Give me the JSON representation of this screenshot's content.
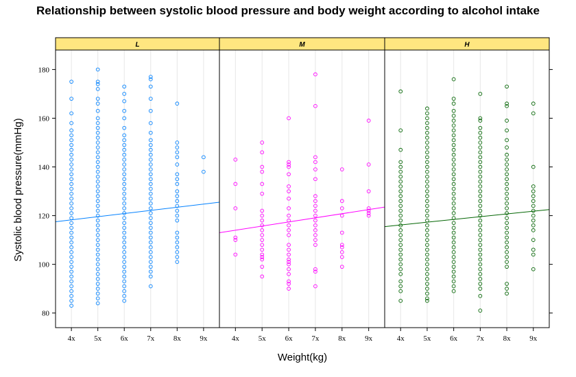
{
  "chart_data": {
    "type": "scatter",
    "title": "Relationship between systolic blood pressure and body weight according to alcohol intake",
    "xlabel": "Weight(kg)",
    "ylabel": "Systolic blood pressure(mmHg)",
    "categories": [
      "4x",
      "5x",
      "6x",
      "7x",
      "8x",
      "9x"
    ],
    "yticks": [
      80,
      100,
      120,
      140,
      160,
      180
    ],
    "ylim": [
      74,
      188
    ],
    "grid": "vertical",
    "panels": [
      {
        "name": "L",
        "color": "#0080ff",
        "trend": [
          117.5,
          125.5
        ],
        "points": {
          "4x": [
            83,
            85,
            87,
            89,
            91,
            93,
            95,
            97,
            99,
            101,
            103,
            105,
            107,
            109,
            111,
            113,
            115,
            117,
            119,
            121,
            123,
            125,
            127,
            129,
            131,
            133,
            135,
            137,
            139,
            141,
            143,
            145,
            147,
            149,
            151,
            153,
            155,
            158,
            162,
            168,
            175
          ],
          "5x": [
            84,
            86,
            88,
            90,
            92,
            94,
            96,
            98,
            100,
            102,
            104,
            106,
            108,
            110,
            112,
            114,
            116,
            118,
            120,
            122,
            124,
            126,
            128,
            130,
            132,
            134,
            136,
            138,
            140,
            142,
            144,
            146,
            148,
            150,
            152,
            154,
            156,
            158,
            160,
            163,
            166,
            168,
            172,
            174,
            175,
            180
          ],
          "6x": [
            85,
            87,
            89,
            91,
            93,
            95,
            97,
            99,
            101,
            103,
            105,
            107,
            109,
            111,
            113,
            115,
            117,
            119,
            121,
            123,
            125,
            127,
            129,
            131,
            133,
            135,
            137,
            139,
            141,
            143,
            145,
            147,
            149,
            151,
            153,
            156,
            160,
            163,
            167,
            170,
            173
          ],
          "7x": [
            91,
            95,
            97,
            99,
            101,
            103,
            105,
            107,
            109,
            111,
            113,
            115,
            117,
            119,
            121,
            123,
            125,
            127,
            129,
            131,
            133,
            135,
            137,
            139,
            141,
            143,
            145,
            147,
            149,
            151,
            154,
            158,
            163,
            168,
            173,
            176,
            177
          ],
          "8x": [
            101,
            103,
            105,
            107,
            109,
            111,
            113,
            118,
            120,
            122,
            124,
            126,
            128,
            130,
            133,
            135,
            137,
            141,
            144,
            146,
            148,
            150,
            166
          ],
          "9x": [
            138,
            144
          ]
        }
      },
      {
        "name": "M",
        "color": "#ff00ff",
        "trend": [
          113,
          123.5
        ],
        "points": {
          "4x": [
            104,
            110,
            111,
            123,
            133,
            143
          ],
          "5x": [
            95,
            99,
            102,
            103,
            104,
            106,
            108,
            110,
            112,
            114,
            116,
            118,
            120,
            122,
            129,
            133,
            138,
            140,
            146,
            150
          ],
          "6x": [
            90,
            92,
            93,
            96,
            98,
            100,
            101,
            102,
            104,
            106,
            108,
            112,
            114,
            116,
            118,
            120,
            123,
            127,
            130,
            132,
            137,
            140,
            141,
            142,
            160
          ],
          "7x": [
            91,
            97,
            98,
            108,
            110,
            112,
            114,
            116,
            118,
            120,
            122,
            124,
            126,
            128,
            135,
            139,
            142,
            144,
            165,
            178
          ],
          "8x": [
            99,
            103,
            105,
            107,
            108,
            113,
            120,
            123,
            126,
            139
          ],
          "9x": [
            120,
            121,
            122,
            123,
            130,
            141,
            159
          ]
        }
      },
      {
        "name": "H",
        "color": "#006400",
        "trend": [
          115.5,
          122.5
        ],
        "points": {
          "4x": [
            85,
            89,
            91,
            93,
            96,
            98,
            100,
            102,
            104,
            106,
            108,
            110,
            112,
            114,
            116,
            118,
            120,
            122,
            124,
            126,
            128,
            130,
            132,
            134,
            136,
            138,
            140,
            142,
            147,
            155,
            171
          ],
          "5x": [
            85,
            86,
            88,
            90,
            92,
            94,
            96,
            98,
            100,
            102,
            104,
            106,
            108,
            110,
            112,
            114,
            116,
            118,
            120,
            122,
            124,
            126,
            128,
            130,
            132,
            134,
            136,
            138,
            140,
            142,
            144,
            146,
            148,
            150,
            152,
            154,
            156,
            158,
            160,
            162,
            164
          ],
          "6x": [
            89,
            91,
            93,
            95,
            97,
            99,
            101,
            103,
            105,
            107,
            109,
            111,
            113,
            115,
            117,
            119,
            121,
            123,
            125,
            127,
            129,
            131,
            133,
            135,
            137,
            139,
            141,
            143,
            145,
            147,
            149,
            151,
            153,
            155,
            157,
            159,
            161,
            163,
            166,
            168,
            176
          ],
          "7x": [
            81,
            87,
            90,
            92,
            94,
            96,
            98,
            100,
            102,
            104,
            106,
            108,
            110,
            112,
            114,
            116,
            118,
            120,
            122,
            124,
            126,
            128,
            130,
            132,
            134,
            136,
            138,
            140,
            142,
            144,
            146,
            148,
            150,
            152,
            154,
            156,
            159,
            160,
            170
          ],
          "8x": [
            88,
            90,
            92,
            99,
            101,
            103,
            105,
            107,
            109,
            111,
            113,
            115,
            117,
            119,
            121,
            123,
            125,
            127,
            129,
            131,
            133,
            135,
            137,
            139,
            141,
            143,
            145,
            148,
            151,
            155,
            159,
            165,
            166,
            173
          ],
          "9x": [
            98,
            104,
            106,
            110,
            114,
            116,
            118,
            120,
            122,
            124,
            126,
            128,
            130,
            132,
            140,
            162,
            166
          ]
        }
      }
    ]
  }
}
